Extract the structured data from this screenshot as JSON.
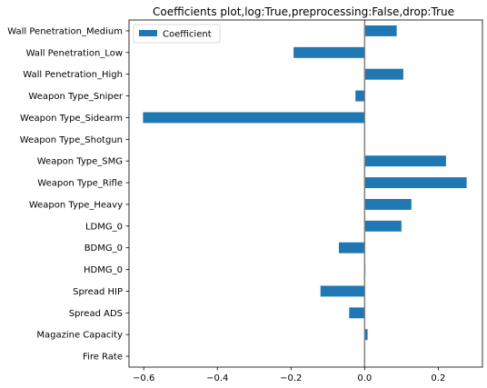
{
  "chart_data": {
    "type": "bar",
    "orientation": "horizontal",
    "title": "Coefficients plot,log:True,preprocessing:False,drop:True",
    "xlabel": "",
    "ylabel": "",
    "xlim": [
      -0.64,
      0.32
    ],
    "xticks": [
      -0.6,
      -0.4,
      -0.2,
      0.0,
      0.2
    ],
    "xtick_labels": [
      "−0.6",
      "−0.4",
      "−0.2",
      "0.0",
      "0.2"
    ],
    "grid": false,
    "legend_position": "top-left",
    "zero_line": true,
    "categories": [
      "Fire Rate",
      "Magazine Capacity",
      "Spread ADS",
      "Spread HIP",
      "HDMG_0",
      "BDMG_0",
      "LDMG_0",
      "Weapon Type_Heavy",
      "Weapon Type_Rifle",
      "Weapon Type_SMG",
      "Weapon Type_Shotgun",
      "Weapon Type_Sidearm",
      "Weapon Type_Sniper",
      "Wall Penetration_High",
      "Wall Penetration_Low",
      "Wall Penetration_Medium"
    ],
    "series": [
      {
        "name": "Coefficient",
        "color": "#1f77b4",
        "values": [
          0.0,
          0.008,
          -0.042,
          -0.12,
          0.002,
          -0.07,
          0.1,
          0.127,
          0.277,
          0.221,
          0.0,
          -0.602,
          -0.025,
          0.105,
          -0.193,
          0.087
        ]
      }
    ]
  }
}
